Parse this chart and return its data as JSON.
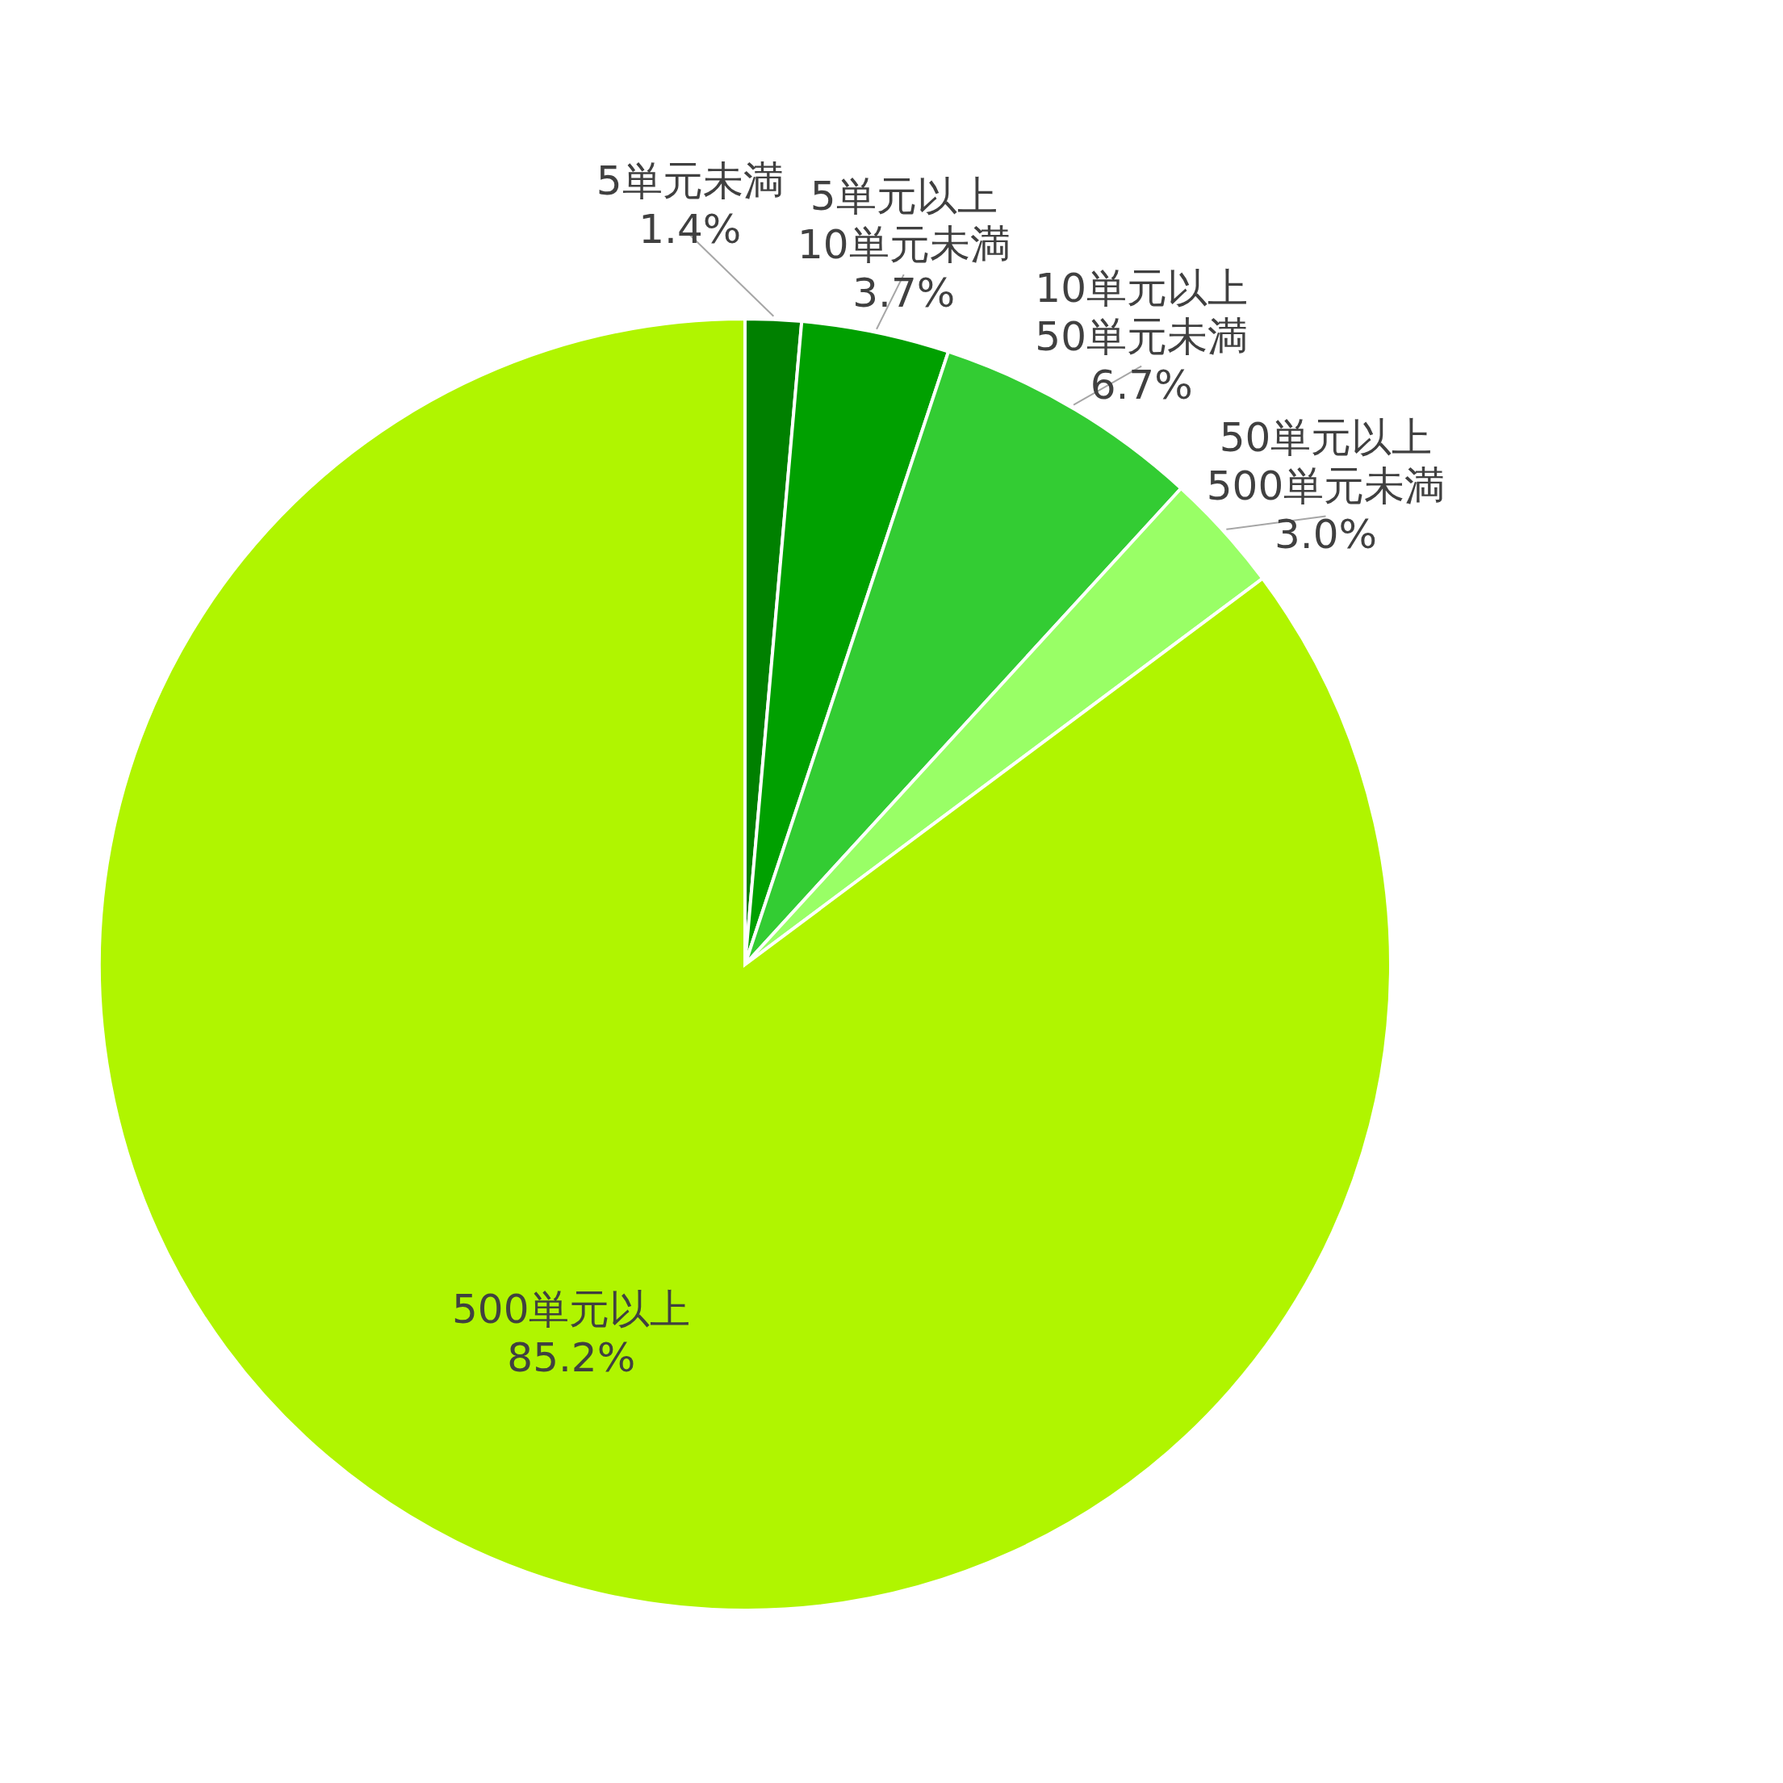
{
  "chart_data": {
    "type": "pie",
    "categories": [
      "5単元未満",
      "5単元以上\n10単元未満",
      "10単元以上\n50単元未満",
      "50単元以上\n500単元未満",
      "500単元以上"
    ],
    "values": [
      1.4,
      3.7,
      6.7,
      3.0,
      85.2
    ],
    "value_labels": [
      "1.4%",
      "3.7%",
      "6.7%",
      "3.0%",
      "85.2%"
    ],
    "colors": [
      "#008000",
      "#00a000",
      "#33cc33",
      "#99ff66",
      "#b0f500"
    ]
  }
}
